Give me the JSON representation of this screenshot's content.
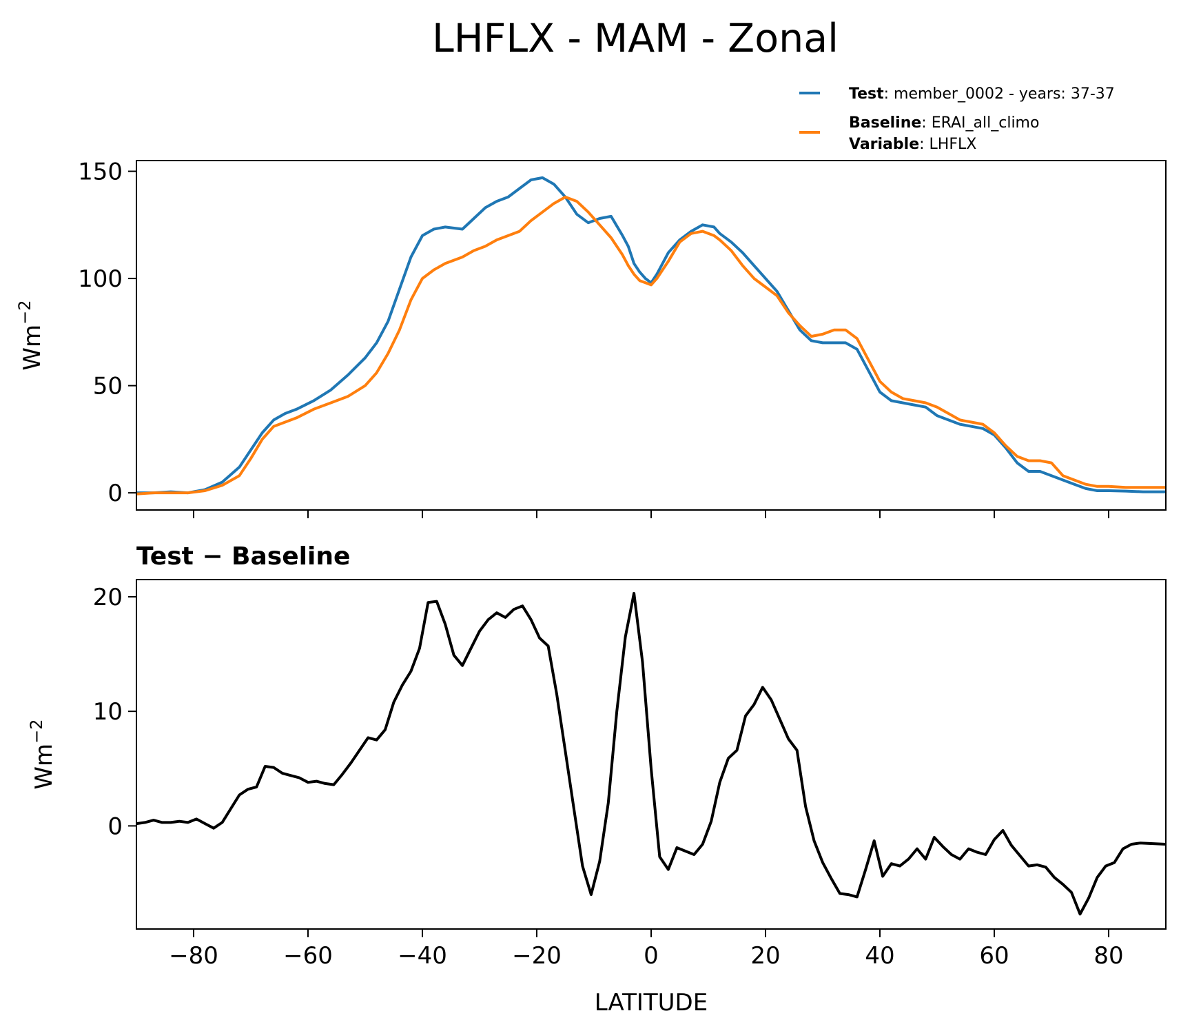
{
  "title": "LHFLX - MAM - Zonal",
  "legend": {
    "test_key": "Test",
    "test_value": ": member_0002 - years: 37-37",
    "baseline_key": "Baseline",
    "baseline_value": ": ERAI_all_climo",
    "variable_key": "Variable",
    "variable_value": ": LHFLX"
  },
  "colors": {
    "test": "#1f77b4",
    "baseline": "#ff7f0e",
    "diff": "#000000"
  },
  "chart_data": [
    {
      "type": "line",
      "panel": "top",
      "xlabel": "",
      "ylabel": "Wm",
      "ylabel_sup": "−2",
      "xlim": [
        -90,
        90
      ],
      "ylim": [
        -8,
        155
      ],
      "xticks": [
        -80,
        -60,
        -40,
        -20,
        0,
        20,
        40,
        60,
        80
      ],
      "yticks": [
        0,
        50,
        100,
        150
      ],
      "yticklabels": [
        "0",
        "50",
        "100",
        "150"
      ],
      "series": [
        {
          "name": "Test",
          "x": [
            -90,
            -87,
            -84,
            -81,
            -78,
            -75,
            -72,
            -70,
            -68,
            -66,
            -64,
            -62,
            -59,
            -56,
            -53,
            -50,
            -48,
            -46,
            -44,
            -42,
            -40,
            -38,
            -36,
            -33,
            -31,
            -29,
            -27,
            -25,
            -23,
            -21,
            -19,
            -17,
            -15,
            -13,
            -11,
            -9,
            -7,
            -5,
            -4,
            -3,
            -2,
            -1,
            0,
            1,
            2,
            3,
            5,
            7,
            9,
            11,
            12,
            14,
            16,
            18,
            20,
            22,
            24,
            26,
            28,
            30,
            32,
            34,
            36,
            38,
            40,
            42,
            44,
            46,
            48,
            50,
            52,
            54,
            56,
            58,
            60,
            62,
            64,
            66,
            68,
            70,
            72,
            74,
            76,
            78,
            80,
            83,
            86,
            90
          ],
          "y": [
            0,
            0,
            0.5,
            0,
            1.5,
            5,
            12,
            20,
            28,
            34,
            37,
            39,
            43,
            48,
            55,
            63,
            70,
            80,
            95,
            110,
            120,
            123,
            124,
            123,
            128,
            133,
            136,
            138,
            142,
            146,
            147,
            144,
            138,
            130,
            126,
            128,
            129,
            120,
            115,
            107,
            103,
            100,
            98,
            102,
            107,
            112,
            118,
            122,
            125,
            124,
            121,
            117,
            112,
            106,
            100,
            94,
            85,
            76,
            71,
            70,
            70,
            70,
            67,
            57,
            47,
            43,
            42,
            41,
            40,
            36,
            34,
            32,
            31,
            30,
            27,
            21,
            14,
            10,
            10,
            8,
            6,
            4,
            2,
            1,
            1,
            0.8,
            0.5,
            0.5
          ]
        },
        {
          "name": "Baseline",
          "x": [
            -90,
            -87,
            -84,
            -81,
            -78,
            -75,
            -72,
            -70,
            -68,
            -66,
            -64,
            -62,
            -59,
            -56,
            -53,
            -50,
            -48,
            -46,
            -44,
            -42,
            -40,
            -38,
            -36,
            -33,
            -31,
            -29,
            -27,
            -25,
            -23,
            -21,
            -19,
            -17,
            -15,
            -13,
            -11,
            -9,
            -7,
            -5,
            -4,
            -3,
            -2,
            -1,
            0,
            1,
            2,
            3,
            5,
            7,
            9,
            11,
            12,
            14,
            16,
            18,
            20,
            22,
            24,
            26,
            28,
            30,
            32,
            34,
            36,
            38,
            40,
            42,
            44,
            46,
            48,
            50,
            52,
            54,
            56,
            58,
            60,
            62,
            64,
            66,
            68,
            70,
            72,
            74,
            76,
            78,
            80,
            83,
            86,
            90
          ],
          "y": [
            -0.5,
            0,
            0,
            0,
            1,
            3.5,
            8,
            16,
            25,
            31,
            33,
            35,
            39,
            42,
            45,
            50,
            56,
            65,
            76,
            90,
            100,
            104,
            107,
            110,
            113,
            115,
            118,
            120,
            122,
            127,
            131,
            135,
            138,
            136,
            131,
            125,
            119,
            111,
            106,
            102,
            99,
            98,
            97,
            100,
            104,
            108,
            117,
            121,
            122,
            120,
            118,
            113,
            106,
            100,
            96,
            92,
            84,
            78,
            73,
            74,
            76,
            76,
            72,
            62,
            52,
            47,
            44,
            43,
            42,
            40,
            37,
            34,
            33,
            32,
            28,
            22,
            17,
            15,
            15,
            14,
            8,
            6,
            4,
            3,
            3,
            2.5,
            2.5,
            2.5
          ]
        }
      ]
    },
    {
      "type": "line",
      "panel": "bottom",
      "title": "Test − Baseline",
      "xlabel": "LATITUDE",
      "ylabel": "Wm",
      "ylabel_sup": "−2",
      "xlim": [
        -90,
        90
      ],
      "ylim": [
        -9,
        21.5
      ],
      "xticks": [
        -80,
        -60,
        -40,
        -20,
        0,
        20,
        40,
        60,
        80
      ],
      "xticklabels": [
        "−80",
        "−60",
        "−40",
        "−20",
        "0",
        "20",
        "40",
        "60",
        "80"
      ],
      "yticks": [
        0,
        10,
        20
      ],
      "yticklabels": [
        "0",
        "10",
        "20"
      ],
      "series": [
        {
          "name": "Test − Baseline",
          "x": [
            -90,
            -88.5,
            -87,
            -85.5,
            -84,
            -82.5,
            -81,
            -79.5,
            -78,
            -76.5,
            -75,
            -73.5,
            -72,
            -70.5,
            -69,
            -67.5,
            -66,
            -64.5,
            -63,
            -61.5,
            -60,
            -58.5,
            -57,
            -55.5,
            -54,
            -52.5,
            -51,
            -49.5,
            -48,
            -46.5,
            -45,
            -43.5,
            -42,
            -40.5,
            -39,
            -37.5,
            -36,
            -34.5,
            -33,
            -31.5,
            -30,
            -28.5,
            -27,
            -25.5,
            -24,
            -22.5,
            -21,
            -19.5,
            -18,
            -16.5,
            -15,
            -13.5,
            -12,
            -10.5,
            -9,
            -7.5,
            -6,
            -4.5,
            -3,
            -1.5,
            0,
            1.5,
            3,
            4.5,
            6,
            7.5,
            9,
            10.5,
            12,
            13.5,
            15,
            16.5,
            18,
            19.5,
            21,
            22.5,
            24,
            25.5,
            27,
            28.5,
            30,
            31.5,
            33,
            34.5,
            36,
            37.5,
            39,
            40.5,
            42,
            43.5,
            45,
            46.5,
            48,
            49.5,
            51,
            52.5,
            54,
            55.5,
            57,
            58.5,
            60,
            61.5,
            63,
            64.5,
            66,
            67.5,
            69,
            70.5,
            72,
            73.5,
            75,
            76.5,
            78,
            79.5,
            81,
            82.5,
            84,
            85.5,
            90
          ],
          "y": [
            0.2,
            0.3,
            0.5,
            0.3,
            0.3,
            0.4,
            0.3,
            0.6,
            0.2,
            -0.2,
            0.3,
            1.5,
            2.7,
            3.2,
            3.4,
            5.2,
            5.1,
            4.6,
            4.4,
            4.2,
            3.8,
            3.9,
            3.7,
            3.6,
            4.5,
            5.5,
            6.6,
            7.7,
            7.5,
            8.4,
            10.8,
            12.3,
            13.5,
            15.5,
            19.5,
            19.6,
            17.6,
            14.9,
            14.0,
            15.5,
            17,
            18,
            18.6,
            18.2,
            18.9,
            19.2,
            18,
            16.4,
            15.7,
            11.5,
            6.5,
            1.5,
            -3.5,
            -6,
            -3.1,
            2,
            10,
            16.5,
            20.3,
            14.3,
            5,
            -2.7,
            -3.8,
            -1.9,
            -2.2,
            -2.5,
            -1.6,
            0.4,
            3.8,
            5.9,
            6.6,
            9.6,
            10.6,
            12.1,
            11.0,
            9.3,
            7.6,
            6.6,
            1.7,
            -1.3,
            -3.2,
            -4.6,
            -5.9,
            -6,
            -6.2,
            -3.8,
            -1.3,
            -4.4,
            -3.3,
            -3.5,
            -2.9,
            -2,
            -2.9,
            -1,
            -1.8,
            -2.5,
            -2.9,
            -2,
            -2.3,
            -2.5,
            -1.2,
            -0.4,
            -1.7,
            -2.6,
            -3.5,
            -3.4,
            -3.6,
            -4.5,
            -5.1,
            -5.8,
            -7.7,
            -6.3,
            -4.5,
            -3.5,
            -3.2,
            -2,
            -1.6,
            -1.5,
            -1.6
          ]
        }
      ]
    }
  ]
}
